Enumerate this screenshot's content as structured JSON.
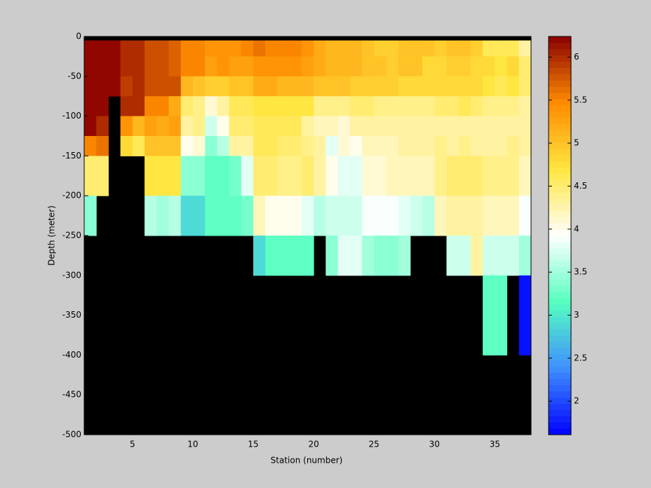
{
  "chart_data": {
    "type": "heatmap",
    "xlabel": "Station (number)",
    "ylabel": "Depth (meter)",
    "x": [
      1,
      2,
      3,
      4,
      5,
      6,
      7,
      8,
      9,
      10,
      11,
      12,
      13,
      14,
      15,
      16,
      17,
      18,
      19,
      20,
      21,
      22,
      23,
      24,
      25,
      26,
      27,
      28,
      29,
      30,
      31,
      32,
      33,
      34,
      35,
      36,
      37,
      38
    ],
    "y": [
      0,
      -5,
      -25,
      -50,
      -75,
      -100,
      -125,
      -150,
      -200,
      -250,
      -300,
      -400,
      -500
    ],
    "values": [
      [
        null,
        null,
        null,
        null,
        null,
        null,
        null,
        null,
        null,
        null,
        null,
        null,
        null,
        null,
        null,
        null,
        null,
        null,
        null,
        null,
        null,
        null,
        null,
        null,
        null,
        null,
        null,
        null,
        null,
        null,
        null,
        null,
        null,
        null,
        null,
        null,
        null
      ],
      [
        6.2,
        6.2,
        6.2,
        6.0,
        6.0,
        5.8,
        5.8,
        5.7,
        5.5,
        5.5,
        5.4,
        5.4,
        5.4,
        5.5,
        5.6,
        5.5,
        5.5,
        5.5,
        5.4,
        5.2,
        5.1,
        5.1,
        5.1,
        5.0,
        4.9,
        4.9,
        5.0,
        5.0,
        5.0,
        4.9,
        5.0,
        5.0,
        4.9,
        4.6,
        4.6,
        4.6,
        4.3
      ],
      [
        6.2,
        6.2,
        6.2,
        6.0,
        6.0,
        5.8,
        5.8,
        5.7,
        5.5,
        5.5,
        5.3,
        5.4,
        5.3,
        5.3,
        5.4,
        5.4,
        5.4,
        5.4,
        5.3,
        5.2,
        5.1,
        5.1,
        5.1,
        5.0,
        5.0,
        4.9,
        5.0,
        5.0,
        4.8,
        4.8,
        4.9,
        4.9,
        4.8,
        4.8,
        4.7,
        4.8,
        4.5
      ],
      [
        6.2,
        6.2,
        6.2,
        5.9,
        6.0,
        5.8,
        5.8,
        5.8,
        5.1,
        5.0,
        4.9,
        4.9,
        5.0,
        5.0,
        5.2,
        5.2,
        5.1,
        5.1,
        5.1,
        5.0,
        5.0,
        5.0,
        4.9,
        4.9,
        4.9,
        4.9,
        4.8,
        4.8,
        4.8,
        4.8,
        4.8,
        4.8,
        4.8,
        4.7,
        4.6,
        4.7,
        4.5
      ],
      [
        6.2,
        6.2,
        null,
        6.0,
        6.0,
        5.5,
        5.5,
        5.2,
        4.5,
        4.4,
        4.1,
        4.3,
        4.6,
        4.6,
        4.7,
        4.7,
        4.7,
        4.7,
        4.7,
        4.4,
        4.4,
        4.4,
        4.5,
        4.5,
        4.4,
        4.4,
        4.4,
        4.4,
        4.4,
        4.5,
        4.5,
        4.6,
        4.5,
        4.4,
        4.4,
        4.4,
        4.3
      ],
      [
        6.2,
        6.0,
        null,
        5.4,
        5.1,
        5.3,
        5.2,
        5.3,
        4.3,
        4.4,
        3.7,
        4.0,
        4.5,
        4.5,
        4.6,
        4.6,
        4.6,
        4.6,
        4.3,
        4.2,
        4.2,
        4.1,
        4.3,
        4.3,
        4.3,
        4.3,
        4.3,
        4.3,
        4.3,
        4.3,
        4.3,
        4.3,
        4.3,
        4.3,
        4.3,
        4.3,
        4.3
      ],
      [
        5.5,
        5.6,
        null,
        4.8,
        4.6,
        5.0,
        5.0,
        5.0,
        4.0,
        4.1,
        3.4,
        3.6,
        4.3,
        4.3,
        4.6,
        4.6,
        4.5,
        4.5,
        4.4,
        4.3,
        3.8,
        4.1,
        4.0,
        4.2,
        4.2,
        4.2,
        4.3,
        4.3,
        4.3,
        4.4,
        4.3,
        4.4,
        4.3,
        4.3,
        4.3,
        4.4,
        4.3
      ],
      [
        4.5,
        4.5,
        null,
        null,
        null,
        4.7,
        4.7,
        4.7,
        3.4,
        3.4,
        3.2,
        3.2,
        3.3,
        3.8,
        4.5,
        4.5,
        4.4,
        4.4,
        4.5,
        4.3,
        4.0,
        3.8,
        3.8,
        4.1,
        4.1,
        4.2,
        4.2,
        4.2,
        4.2,
        4.4,
        4.5,
        4.5,
        4.5,
        4.4,
        4.4,
        4.4,
        4.2
      ],
      [
        3.4,
        null,
        null,
        null,
        null,
        3.6,
        3.5,
        3.6,
        2.9,
        2.9,
        3.2,
        3.2,
        3.2,
        3.3,
        4.2,
        4.0,
        4.0,
        4.0,
        3.8,
        3.6,
        3.7,
        3.7,
        3.7,
        3.9,
        3.9,
        3.9,
        3.8,
        3.7,
        3.6,
        4.2,
        4.3,
        4.3,
        4.3,
        4.2,
        4.2,
        4.2,
        3.9
      ],
      [
        null,
        null,
        null,
        null,
        null,
        null,
        null,
        null,
        null,
        null,
        null,
        null,
        null,
        null,
        2.9,
        3.2,
        3.2,
        3.2,
        3.2,
        null,
        3.4,
        3.8,
        3.8,
        3.5,
        3.4,
        3.4,
        3.5,
        null,
        null,
        null,
        3.7,
        3.7,
        4.3,
        3.7,
        3.7,
        3.7,
        3.5
      ],
      [
        null,
        null,
        null,
        null,
        null,
        null,
        null,
        null,
        null,
        null,
        null,
        null,
        null,
        null,
        null,
        null,
        null,
        null,
        null,
        null,
        null,
        null,
        null,
        null,
        null,
        null,
        null,
        null,
        null,
        null,
        null,
        null,
        null,
        3.2,
        3.2,
        null,
        1.7
      ],
      [
        null,
        null,
        null,
        null,
        null,
        null,
        null,
        null,
        null,
        null,
        null,
        null,
        null,
        null,
        null,
        null,
        null,
        null,
        null,
        null,
        null,
        null,
        null,
        null,
        null,
        null,
        null,
        null,
        null,
        null,
        null,
        null,
        null,
        null,
        null,
        null,
        null
      ]
    ],
    "xlim": [
      1,
      38
    ],
    "xticks": [
      5,
      10,
      15,
      20,
      25,
      30,
      35
    ],
    "ylim": [
      -500,
      0
    ],
    "yticks": [
      -500,
      -450,
      -400,
      -350,
      -300,
      -250,
      -200,
      -150,
      -100,
      -50,
      0
    ],
    "clim": [
      1.61,
      6.24
    ],
    "cticks": [
      2,
      2.5,
      3,
      3.5,
      4,
      4.5,
      5,
      5.5,
      6
    ],
    "colormap": [
      "#0000ff",
      "#3f8fff",
      "#55ffc0",
      "#ffffff",
      "#ffe640",
      "#ff8c00",
      "#8b0000"
    ],
    "missing_color": "#000000"
  }
}
